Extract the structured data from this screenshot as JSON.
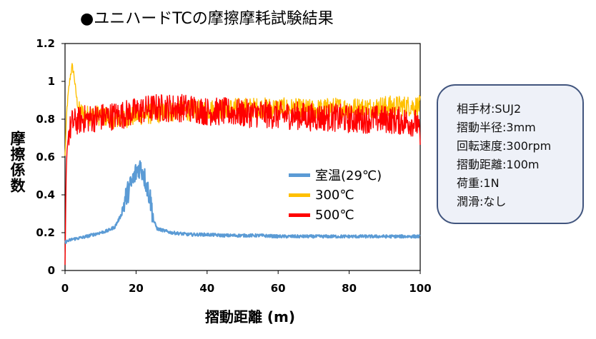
{
  "chart_data": {
    "type": "line",
    "title": "●ユニハードTCの摩擦摩耗試験結果",
    "xlabel": "摺動距離 (m)",
    "ylabel": "摩擦係数",
    "xlim": [
      0,
      100
    ],
    "ylim": [
      0,
      1.2
    ],
    "x_ticks": [
      "0",
      "20",
      "40",
      "60",
      "80",
      "100"
    ],
    "y_ticks": [
      "0",
      "0.2",
      "0.4",
      "0.6",
      "0.8",
      "1",
      "1.2"
    ],
    "grid": false,
    "legend_position": "center-right",
    "series": [
      {
        "name": "室温(29℃)",
        "color": "#5b9bd5",
        "x": [
          0,
          2,
          5,
          8,
          10,
          12,
          14,
          16,
          17,
          18,
          19,
          20,
          21,
          22,
          23,
          24,
          25,
          26,
          28,
          30,
          35,
          40,
          45,
          50,
          55,
          60,
          65,
          70,
          75,
          80,
          85,
          90,
          95,
          100
        ],
        "y": [
          0.15,
          0.165,
          0.175,
          0.19,
          0.2,
          0.21,
          0.23,
          0.3,
          0.38,
          0.43,
          0.47,
          0.52,
          0.55,
          0.52,
          0.45,
          0.38,
          0.26,
          0.22,
          0.21,
          0.2,
          0.19,
          0.19,
          0.185,
          0.185,
          0.185,
          0.18,
          0.18,
          0.18,
          0.18,
          0.18,
          0.18,
          0.18,
          0.18,
          0.18
        ]
      },
      {
        "name": "300℃",
        "color": "#ffc000",
        "x": [
          0,
          0.5,
          1,
          1.5,
          2,
          2.5,
          3,
          3.5,
          4,
          5,
          6,
          8,
          10,
          15,
          20,
          25,
          30,
          40,
          50,
          60,
          70,
          75,
          80,
          85,
          90,
          95,
          100
        ],
        "y": [
          0.6,
          0.85,
          0.95,
          1.03,
          1.08,
          1.04,
          0.95,
          0.88,
          0.84,
          0.83,
          0.82,
          0.82,
          0.82,
          0.8,
          0.82,
          0.83,
          0.84,
          0.85,
          0.86,
          0.86,
          0.85,
          0.86,
          0.86,
          0.86,
          0.87,
          0.87,
          0.87
        ]
      },
      {
        "name": "500℃",
        "color": "#ff0000",
        "x": [
          0,
          0.3,
          0.6,
          1,
          2,
          5,
          10,
          15,
          20,
          25,
          30,
          35,
          40,
          45,
          50,
          55,
          60,
          65,
          70,
          75,
          80,
          85,
          90,
          95,
          99,
          100
        ],
        "y": [
          0.02,
          0.5,
          0.65,
          0.72,
          0.78,
          0.8,
          0.81,
          0.82,
          0.84,
          0.86,
          0.86,
          0.86,
          0.84,
          0.84,
          0.83,
          0.83,
          0.82,
          0.82,
          0.81,
          0.81,
          0.8,
          0.8,
          0.8,
          0.79,
          0.78,
          0.7
        ]
      }
    ]
  },
  "info_box": {
    "lines": [
      "相手材:SUJ2",
      "摺動半径:3mm",
      "回転速度:300rpm",
      "摺動距離:100m",
      "荷重:1N",
      "潤滑:なし"
    ]
  }
}
